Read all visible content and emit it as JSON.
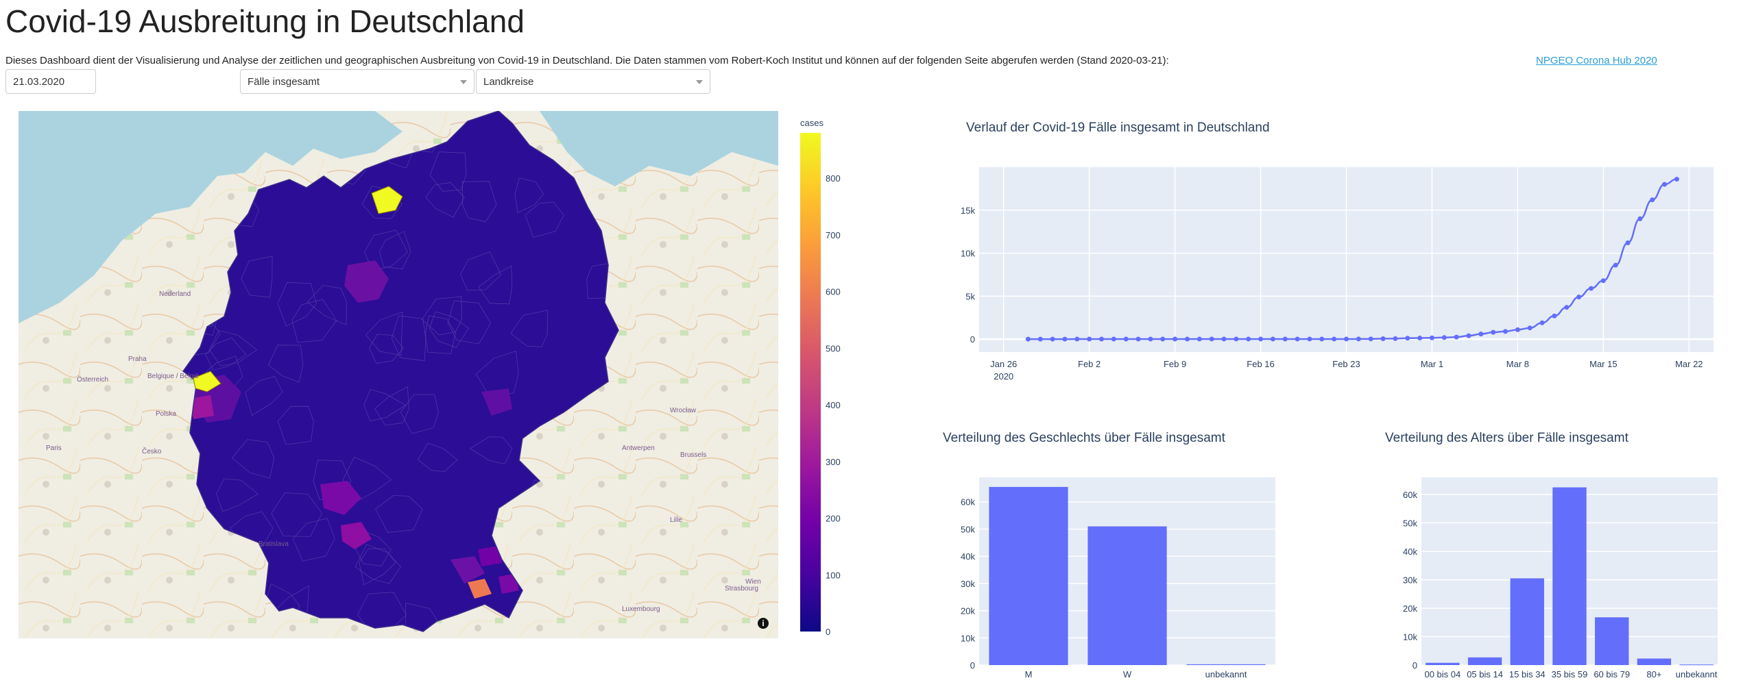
{
  "header": {
    "title": "Covid-19 Ausbreitung in Deutschland",
    "intro": "Dieses Dashboard dient der Visualisierung und Analyse der zeitlichen und geographischen Ausbreitung von Covid-19 in Deutschland. Die Daten stammen vom Robert-Koch Institut und können auf der folgenden Seite abgerufen werden (Stand 2020-03-21):",
    "link_label": "NPGEO Corona Hub 2020"
  },
  "controls": {
    "date_value": "21.03.2020",
    "metric_selected": "Fälle insgesamt",
    "level_selected": "Landkreise"
  },
  "colors": {
    "plot_bg": "#e5ecf6",
    "bar": "#636efa",
    "line": "#636efa",
    "text": "#2a3f5f"
  },
  "map": {
    "colorbar_title": "cases",
    "colorbar_ticks": [
      "0",
      "100",
      "200",
      "300",
      "400",
      "500",
      "600",
      "700",
      "800"
    ],
    "colorscale": "plasma",
    "info_icon": "info-icon",
    "map_labels": [
      "Nederland",
      "Belgique / België",
      "Polska",
      "Česko",
      "Österreich",
      "Praha",
      "Wrocław",
      "Brussels",
      "Antwerpen",
      "Lille",
      "Luxembourg",
      "Strasbourg",
      "Wien",
      "Bratislava",
      "Paris"
    ]
  },
  "chart_data": [
    {
      "type": "line",
      "title": "Verlauf der Covid-19 Fälle insgesamt in Deutschland",
      "x": [
        "2020-01-28",
        "2020-01-29",
        "2020-01-30",
        "2020-01-31",
        "2020-02-01",
        "2020-02-02",
        "2020-02-03",
        "2020-02-04",
        "2020-02-05",
        "2020-02-06",
        "2020-02-07",
        "2020-02-08",
        "2020-02-09",
        "2020-02-10",
        "2020-02-11",
        "2020-02-12",
        "2020-02-13",
        "2020-02-14",
        "2020-02-15",
        "2020-02-16",
        "2020-02-17",
        "2020-02-18",
        "2020-02-19",
        "2020-02-20",
        "2020-02-21",
        "2020-02-22",
        "2020-02-23",
        "2020-02-24",
        "2020-02-25",
        "2020-02-26",
        "2020-02-27",
        "2020-02-28",
        "2020-02-29",
        "2020-03-01",
        "2020-03-02",
        "2020-03-03",
        "2020-03-04",
        "2020-03-05",
        "2020-03-06",
        "2020-03-07",
        "2020-03-08",
        "2020-03-09",
        "2020-03-10",
        "2020-03-11",
        "2020-03-12",
        "2020-03-13",
        "2020-03-14",
        "2020-03-15",
        "2020-03-16",
        "2020-03-17",
        "2020-03-18",
        "2020-03-19",
        "2020-03-20",
        "2020-03-21"
      ],
      "y": [
        4,
        5,
        7,
        7,
        8,
        10,
        12,
        12,
        12,
        13,
        13,
        14,
        14,
        14,
        16,
        16,
        16,
        16,
        16,
        16,
        16,
        16,
        16,
        16,
        16,
        16,
        16,
        18,
        26,
        53,
        66,
        117,
        129,
        150,
        188,
        240,
        400,
        600,
        800,
        900,
        1100,
        1300,
        1900,
        2700,
        3700,
        4900,
        5900,
        6800,
        8600,
        11200,
        14000,
        16200,
        18000,
        18600
      ],
      "xticks": [
        "Jan 26",
        "Feb 2",
        "Feb 9",
        "Feb 16",
        "Feb 23",
        "Mar 1",
        "Mar 8",
        "Mar 15",
        "Mar 22"
      ],
      "xtick_year": "2020",
      "yticks": [
        "0",
        "5k",
        "10k",
        "15k"
      ],
      "ylim": [
        -1500,
        20000
      ]
    },
    {
      "type": "bar",
      "title": "Verteilung des Geschlechts über Fälle insgesamt",
      "categories": [
        "M",
        "W",
        "unbekannt"
      ],
      "values": [
        65500,
        51000,
        300
      ],
      "yticks": [
        "0",
        "10k",
        "20k",
        "30k",
        "40k",
        "50k",
        "60k"
      ],
      "ylim": [
        0,
        69000
      ]
    },
    {
      "type": "bar",
      "title": "Verteilung des Alters über Fälle insgesamt",
      "categories": [
        "00 bis 04",
        "05 bis 14",
        "15 bis 34",
        "35 bis 59",
        "60 bis 79",
        "80+",
        "unbekannt"
      ],
      "values": [
        800,
        2700,
        30500,
        62500,
        16800,
        2300,
        200
      ],
      "yticks": [
        "0",
        "10k",
        "20k",
        "30k",
        "40k",
        "50k",
        "60k"
      ],
      "ylim": [
        0,
        66000
      ]
    }
  ]
}
